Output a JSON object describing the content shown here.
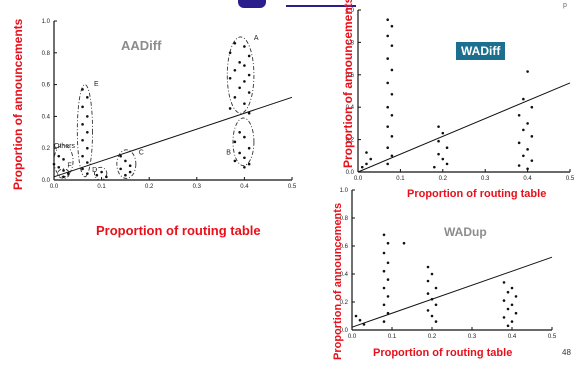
{
  "slide": {
    "page_mark": "p",
    "number": "48"
  },
  "chart_data": [
    {
      "id": "aadiff",
      "type": "scatter",
      "title": "AADiff",
      "xlabel": "Proportion of routing table",
      "ylabel": "Proportion of announcements",
      "xlim": [
        0,
        0.5
      ],
      "ylim": [
        0,
        1.0
      ],
      "xticks": [
        {
          "v": 0.0,
          "t": "0.0"
        },
        {
          "v": 0.1,
          "t": "0.1"
        },
        {
          "v": 0.2,
          "t": "0.2"
        },
        {
          "v": 0.3,
          "t": "0.3"
        },
        {
          "v": 0.4,
          "t": "0.4"
        },
        {
          "v": 0.5,
          "t": "0.5"
        }
      ],
      "yticks": [
        {
          "v": 0.0,
          "t": "0.0"
        },
        {
          "v": 0.2,
          "t": "0.2"
        },
        {
          "v": 0.4,
          "t": "0.4"
        },
        {
          "v": 0.6,
          "t": "0.6"
        },
        {
          "v": 0.8,
          "t": "0.8"
        },
        {
          "v": 1.0,
          "t": "1.0"
        }
      ],
      "trend": [
        [
          0.0,
          0.02
        ],
        [
          0.5,
          0.52
        ]
      ],
      "groups": [
        {
          "label": "A",
          "cx": 0.392,
          "cy": 0.66,
          "rx": 0.028,
          "ry": 0.24,
          "lx": 0.42,
          "ly": 0.88
        },
        {
          "label": "B",
          "cx": 0.398,
          "cy": 0.24,
          "rx": 0.022,
          "ry": 0.15,
          "lx": 0.362,
          "ly": 0.16
        },
        {
          "label": "C",
          "cx": 0.152,
          "cy": 0.1,
          "rx": 0.02,
          "ry": 0.09,
          "lx": 0.178,
          "ly": 0.16
        },
        {
          "label": "D",
          "cx": 0.098,
          "cy": 0.04,
          "rx": 0.013,
          "ry": 0.04,
          "lx": 0.08,
          "ly": 0.05
        },
        {
          "label": "E",
          "cx": 0.065,
          "cy": 0.31,
          "rx": 0.016,
          "ry": 0.29,
          "lx": 0.084,
          "ly": 0.59
        },
        {
          "label": "F",
          "cx": 0.02,
          "cy": 0.04,
          "rx": 0.012,
          "ry": 0.03,
          "lx": 0.028,
          "ly": 0.08
        },
        {
          "label": "Others",
          "cx": 0.02,
          "cy": 0.12,
          "rx": 0.02,
          "ry": 0.1,
          "lx": 0.0,
          "ly": 0.2
        }
      ],
      "points": [
        [
          0.38,
          0.86
        ],
        [
          0.4,
          0.84
        ],
        [
          0.37,
          0.8
        ],
        [
          0.41,
          0.78
        ],
        [
          0.39,
          0.74
        ],
        [
          0.4,
          0.72
        ],
        [
          0.38,
          0.69
        ],
        [
          0.41,
          0.66
        ],
        [
          0.37,
          0.64
        ],
        [
          0.4,
          0.62
        ],
        [
          0.39,
          0.58
        ],
        [
          0.41,
          0.55
        ],
        [
          0.38,
          0.52
        ],
        [
          0.4,
          0.48
        ],
        [
          0.37,
          0.45
        ],
        [
          0.41,
          0.42
        ],
        [
          0.39,
          0.3
        ],
        [
          0.4,
          0.27
        ],
        [
          0.38,
          0.24
        ],
        [
          0.41,
          0.2
        ],
        [
          0.39,
          0.17
        ],
        [
          0.4,
          0.14
        ],
        [
          0.38,
          0.12
        ],
        [
          0.41,
          0.1
        ],
        [
          0.4,
          0.08
        ],
        [
          0.06,
          0.57
        ],
        [
          0.07,
          0.52
        ],
        [
          0.06,
          0.46
        ],
        [
          0.07,
          0.4
        ],
        [
          0.06,
          0.35
        ],
        [
          0.07,
          0.3
        ],
        [
          0.06,
          0.25
        ],
        [
          0.07,
          0.2
        ],
        [
          0.06,
          0.15
        ],
        [
          0.07,
          0.11
        ],
        [
          0.06,
          0.07
        ],
        [
          0.07,
          0.04
        ],
        [
          0.14,
          0.15
        ],
        [
          0.15,
          0.12
        ],
        [
          0.16,
          0.09
        ],
        [
          0.14,
          0.07
        ],
        [
          0.16,
          0.05
        ],
        [
          0.15,
          0.03
        ],
        [
          0.1,
          0.05
        ],
        [
          0.09,
          0.03
        ],
        [
          0.11,
          0.02
        ],
        [
          0.02,
          0.06
        ],
        [
          0.03,
          0.04
        ],
        [
          0.02,
          0.02
        ],
        [
          0.01,
          0.15
        ],
        [
          0.02,
          0.13
        ],
        [
          0.0,
          0.1
        ],
        [
          0.01,
          0.08
        ]
      ]
    },
    {
      "id": "wadiff",
      "type": "scatter",
      "title": "WADiff",
      "xlabel": "Proportion of routing table",
      "ylabel": "Proportion of announcements",
      "xlim": [
        0,
        0.5
      ],
      "ylim": [
        0,
        1.0
      ],
      "xticks": [
        {
          "v": 0.0,
          "t": "0.0"
        },
        {
          "v": 0.1,
          "t": "0.1"
        },
        {
          "v": 0.2,
          "t": "0.2"
        },
        {
          "v": 0.3,
          "t": "0.3"
        },
        {
          "v": 0.4,
          "t": "0.4"
        },
        {
          "v": 0.5,
          "t": "0.5"
        }
      ],
      "yticks": [
        {
          "v": 0.0,
          "t": "0.0"
        },
        {
          "v": 0.2,
          "t": "0.2"
        },
        {
          "v": 0.4,
          "t": "0.4"
        },
        {
          "v": 0.6,
          "t": "0.6"
        },
        {
          "v": 0.8,
          "t": "0.8"
        },
        {
          "v": 1.0,
          "t": "1.0"
        }
      ],
      "trend": [
        [
          0.0,
          0.0
        ],
        [
          0.5,
          0.55
        ]
      ],
      "groups": [],
      "points": [
        [
          0.07,
          0.94
        ],
        [
          0.08,
          0.9
        ],
        [
          0.07,
          0.84
        ],
        [
          0.08,
          0.78
        ],
        [
          0.07,
          0.7
        ],
        [
          0.08,
          0.63
        ],
        [
          0.07,
          0.55
        ],
        [
          0.08,
          0.48
        ],
        [
          0.07,
          0.4
        ],
        [
          0.08,
          0.35
        ],
        [
          0.07,
          0.28
        ],
        [
          0.08,
          0.22
        ],
        [
          0.07,
          0.15
        ],
        [
          0.08,
          0.1
        ],
        [
          0.07,
          0.05
        ],
        [
          0.19,
          0.28
        ],
        [
          0.2,
          0.24
        ],
        [
          0.19,
          0.19
        ],
        [
          0.21,
          0.15
        ],
        [
          0.19,
          0.11
        ],
        [
          0.2,
          0.08
        ],
        [
          0.21,
          0.05
        ],
        [
          0.18,
          0.03
        ],
        [
          0.4,
          0.62
        ],
        [
          0.39,
          0.45
        ],
        [
          0.41,
          0.4
        ],
        [
          0.38,
          0.35
        ],
        [
          0.4,
          0.3
        ],
        [
          0.39,
          0.26
        ],
        [
          0.41,
          0.22
        ],
        [
          0.38,
          0.18
        ],
        [
          0.4,
          0.14
        ],
        [
          0.39,
          0.1
        ],
        [
          0.41,
          0.07
        ],
        [
          0.38,
          0.04
        ],
        [
          0.4,
          0.02
        ],
        [
          0.02,
          0.05
        ],
        [
          0.03,
          0.08
        ],
        [
          0.01,
          0.03
        ],
        [
          0.02,
          0.12
        ]
      ]
    },
    {
      "id": "wadup",
      "type": "scatter",
      "title": "WADup",
      "xlabel": "Proportion of routing table",
      "ylabel": "Proportion of announcements",
      "xlim": [
        0,
        0.5
      ],
      "ylim": [
        0,
        1.0
      ],
      "xticks": [
        {
          "v": 0.0,
          "t": "0.0"
        },
        {
          "v": 0.1,
          "t": "0.1"
        },
        {
          "v": 0.2,
          "t": "0.2"
        },
        {
          "v": 0.3,
          "t": "0.3"
        },
        {
          "v": 0.4,
          "t": "0.4"
        },
        {
          "v": 0.5,
          "t": "0.5"
        }
      ],
      "yticks": [
        {
          "v": 0.0,
          "t": "0.0"
        },
        {
          "v": 0.2,
          "t": "0.2"
        },
        {
          "v": 0.4,
          "t": "0.4"
        },
        {
          "v": 0.6,
          "t": "0.6"
        },
        {
          "v": 0.8,
          "t": "0.8"
        },
        {
          "v": 1.0,
          "t": "1.0"
        }
      ],
      "trend": [
        [
          0.0,
          0.02
        ],
        [
          0.5,
          0.52
        ]
      ],
      "groups": [],
      "points": [
        [
          0.08,
          0.68
        ],
        [
          0.09,
          0.62
        ],
        [
          0.08,
          0.55
        ],
        [
          0.09,
          0.48
        ],
        [
          0.08,
          0.42
        ],
        [
          0.09,
          0.36
        ],
        [
          0.08,
          0.3
        ],
        [
          0.09,
          0.24
        ],
        [
          0.08,
          0.18
        ],
        [
          0.09,
          0.12
        ],
        [
          0.08,
          0.06
        ],
        [
          0.19,
          0.45
        ],
        [
          0.2,
          0.4
        ],
        [
          0.19,
          0.35
        ],
        [
          0.21,
          0.3
        ],
        [
          0.19,
          0.26
        ],
        [
          0.2,
          0.22
        ],
        [
          0.21,
          0.18
        ],
        [
          0.19,
          0.14
        ],
        [
          0.2,
          0.1
        ],
        [
          0.21,
          0.06
        ],
        [
          0.38,
          0.34
        ],
        [
          0.4,
          0.3
        ],
        [
          0.39,
          0.27
        ],
        [
          0.41,
          0.24
        ],
        [
          0.38,
          0.21
        ],
        [
          0.4,
          0.18
        ],
        [
          0.39,
          0.15
        ],
        [
          0.41,
          0.12
        ],
        [
          0.38,
          0.09
        ],
        [
          0.4,
          0.06
        ],
        [
          0.39,
          0.03
        ],
        [
          0.13,
          0.62
        ],
        [
          0.02,
          0.07
        ],
        [
          0.03,
          0.04
        ],
        [
          0.01,
          0.1
        ]
      ]
    }
  ]
}
